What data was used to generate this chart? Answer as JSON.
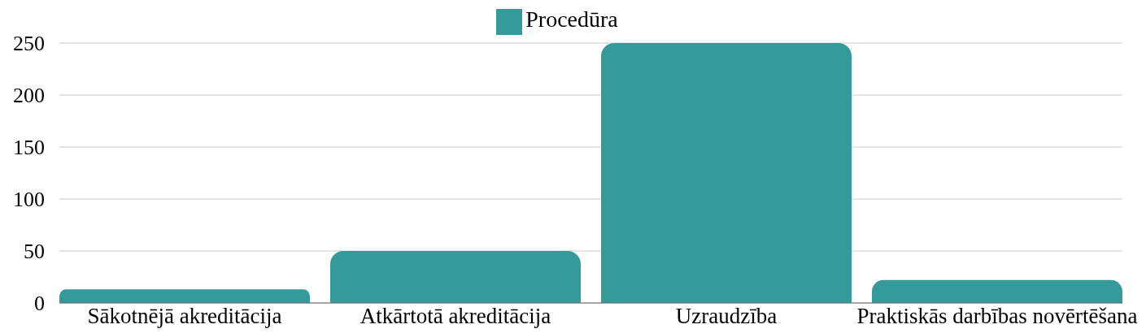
{
  "chart_data": {
    "type": "bar",
    "categories": [
      "Sākotnējā akreditācija",
      "Atkārtotā akreditācija",
      "Uzraudzība",
      "Praktiskās darbības novērtēšana"
    ],
    "series": [
      {
        "name": "Procedūra",
        "color": "#359b9a",
        "values": [
          13,
          50,
          250,
          22
        ]
      }
    ],
    "ylim": [
      0,
      250
    ],
    "yticks": [
      0,
      50,
      100,
      150,
      200,
      250
    ],
    "grid": "y",
    "legend": "top"
  }
}
